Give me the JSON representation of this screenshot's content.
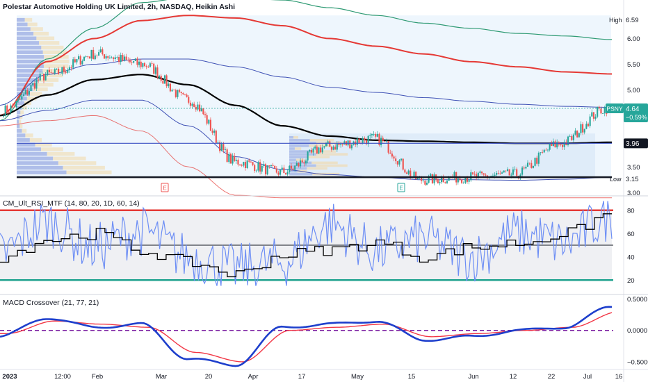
{
  "header": {
    "instrument": "Polestar Automotive Holding UK Limited, 2h, NASDAQ, Heikin Ashi",
    "rsi_title": "CM_Ult_RSI_MTF (14, 80, 20, 1D, 60, 14)",
    "macd_title": "MACD Crossover (21, 77, 21)"
  },
  "price_axis": {
    "labels": [
      "6.00",
      "5.50",
      "5.00",
      "3.50",
      "3.00"
    ],
    "high_label": "High",
    "high_value": "6.59",
    "low_label": "Low",
    "low_value": "3.15",
    "symbol": "PSNY",
    "last_price": "4.64",
    "change": "−0.59%",
    "support_value": "3.96"
  },
  "rsi_axis": {
    "labels": [
      "80",
      "60",
      "40",
      "20"
    ]
  },
  "macd_axis": {
    "labels": [
      "0.5000",
      "0.0000",
      "−0.5000"
    ]
  },
  "time_axis": {
    "labels": [
      "2023",
      "12:00",
      "Feb",
      "Mar",
      "20",
      "Apr",
      "17",
      "May",
      "15",
      "Jun",
      "12",
      "22",
      "Jul",
      "16"
    ]
  },
  "earnings_markers": [
    "E",
    "E"
  ],
  "colors": {
    "up": "#26a69a",
    "down": "#ef5350",
    "vwap": "#000000",
    "band_red": "#e53935",
    "band_blue": "#3f51b5",
    "band_green": "#2e9a73",
    "rsi": "#6d8ef5",
    "rsi_signal": "#000000",
    "macd": "#1e3fcc",
    "macd_signal": "#f23645"
  },
  "chart_data": [
    {
      "type": "candlestick",
      "title": "Polestar Automotive Holding UK Limited, 2h, NASDAQ, Heikin Ashi",
      "x": [
        "2023",
        "12:00",
        "Feb",
        "Mar",
        "20",
        "Apr",
        "17",
        "May",
        "15",
        "Jun",
        "12",
        "22",
        "Jul",
        "16"
      ],
      "series": [
        {
          "values": [
            4.6,
            5.3,
            5.7,
            5.5,
            4.8,
            3.6,
            3.4,
            3.9,
            4.05,
            3.25,
            3.3,
            3.35,
            3.95,
            4.64
          ]
        }
      ],
      "ylim": [
        2.95,
        6.75
      ],
      "high": 6.59,
      "low": 3.15,
      "last": 4.64,
      "change_pct": -0.59,
      "horizontal_levels": [
        3.96,
        3.3
      ]
    },
    {
      "type": "line",
      "title": "CM_Ult_RSI_MTF (14, 80, 20, 1D, 60, 14)",
      "series": [
        {
          "values": [
            42,
            70,
            48,
            62,
            40,
            30,
            35,
            68,
            45,
            55,
            40,
            60,
            52,
            75
          ]
        },
        {
          "values": [
            40,
            55,
            60,
            45,
            35,
            25,
            42,
            46,
            52,
            40,
            48,
            52,
            60,
            78
          ]
        }
      ],
      "levels": [
        80,
        50,
        20
      ],
      "ylim": [
        10,
        90
      ]
    },
    {
      "type": "line",
      "title": "MACD Crossover (21, 77, 21)",
      "series": [
        {
          "values": [
            -0.1,
            0.2,
            0.05,
            0.1,
            -0.45,
            -0.55,
            0.05,
            0.1,
            0.15,
            -0.15,
            -0.1,
            0.0,
            0.05,
            0.38
          ]
        },
        {
          "values": [
            -0.05,
            0.15,
            0.1,
            0.05,
            -0.35,
            -0.5,
            0.0,
            0.05,
            0.1,
            -0.1,
            -0.05,
            0.0,
            0.05,
            0.3
          ]
        }
      ],
      "ylim": [
        -0.6,
        0.55
      ]
    }
  ]
}
